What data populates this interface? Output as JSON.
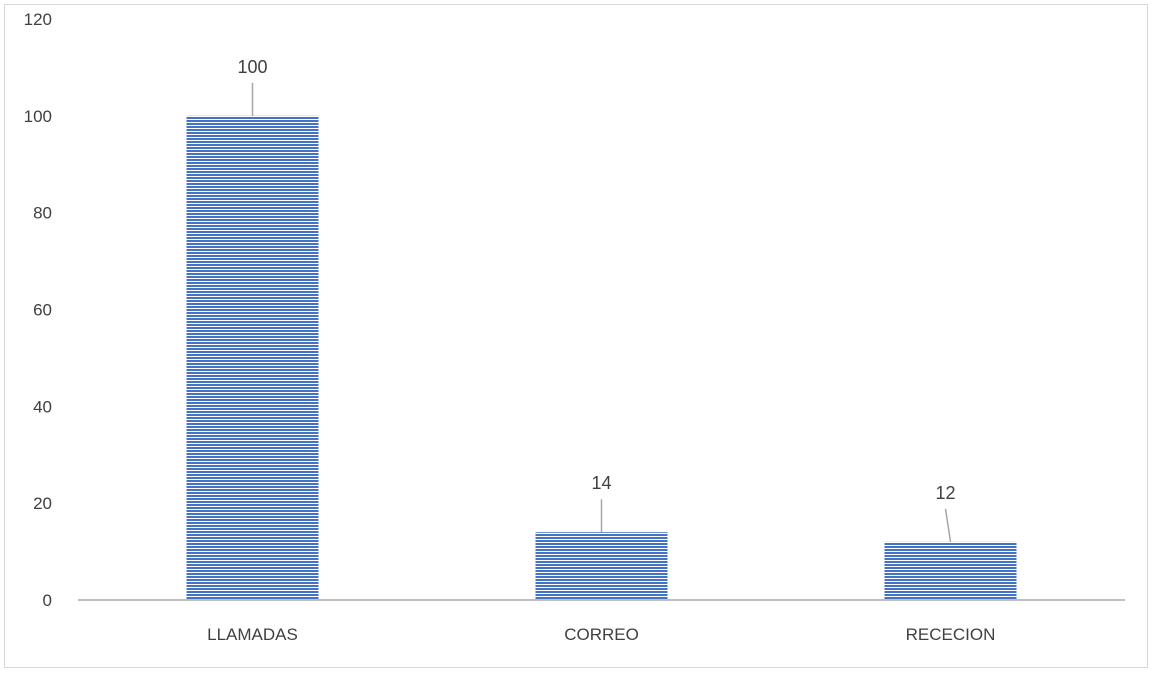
{
  "chart_data": {
    "type": "bar",
    "categories": [
      "LLAMADAS",
      "CORREO",
      "RECECION"
    ],
    "values": [
      100,
      14,
      12
    ],
    "data_labels": [
      "100",
      "14",
      "12"
    ],
    "title": "",
    "xlabel": "",
    "ylabel": "",
    "ylim": [
      0,
      120
    ],
    "yticks": [
      0,
      20,
      40,
      60,
      80,
      100,
      120
    ],
    "ytick_labels": [
      "0",
      "20",
      "40",
      "60",
      "80",
      "100",
      "120"
    ],
    "grid": false,
    "legend": "none",
    "bar_color": "#4472c4",
    "bar_pattern": "horizontal-stripes",
    "leader_line_color": "#a6a6a6",
    "axis_color": "#bfbfbf"
  }
}
